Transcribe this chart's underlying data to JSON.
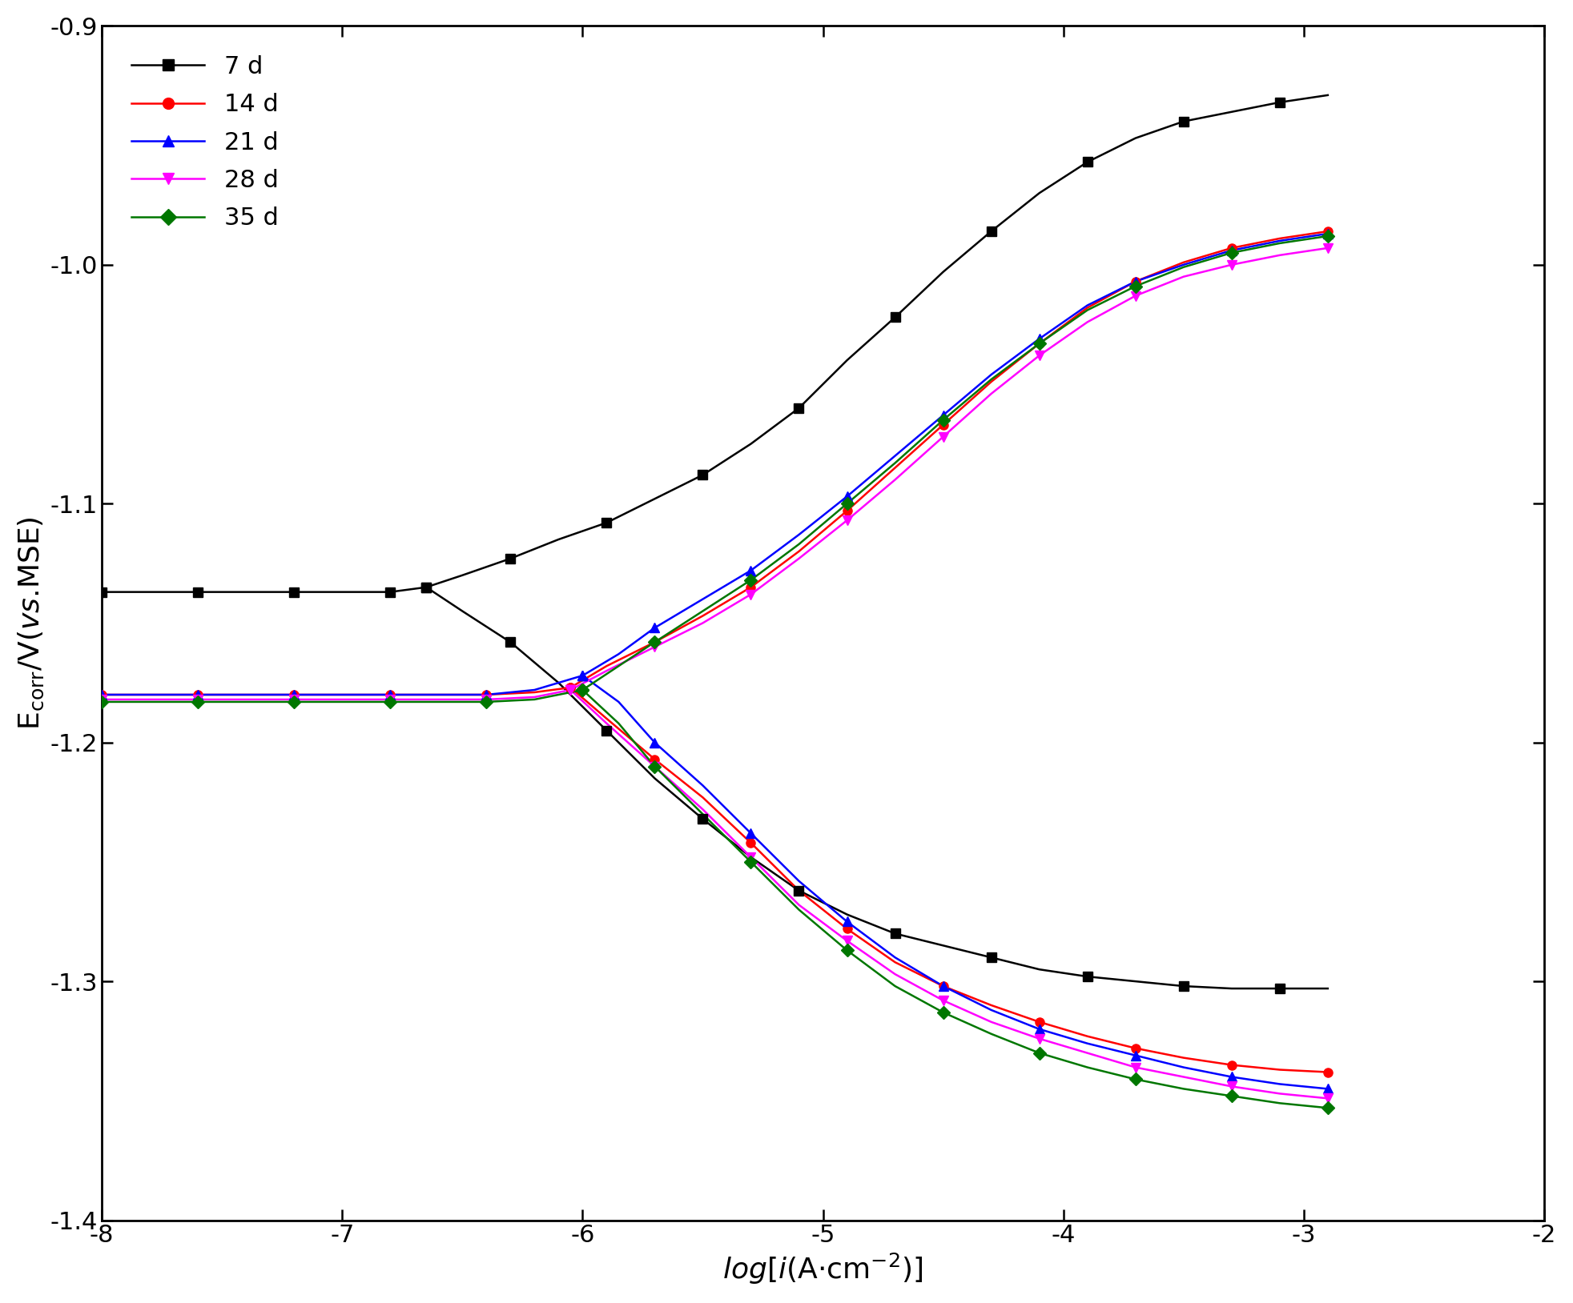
{
  "xlim": [
    -8,
    -2
  ],
  "ylim": [
    -1.4,
    -0.9
  ],
  "xticks": [
    -8,
    -7,
    -6,
    -5,
    -4,
    -3,
    -2
  ],
  "yticks": [
    -1.4,
    -1.3,
    -1.2,
    -1.1,
    -1.0,
    -0.9
  ],
  "series": [
    {
      "label": "7 d",
      "color": "#000000",
      "marker": "s",
      "markersize": 8,
      "linewidth": 1.8,
      "marker_every": 2,
      "left_x": [
        -8.0,
        -7.8,
        -7.6,
        -7.4,
        -7.2,
        -7.0,
        -6.8,
        -6.65
      ],
      "left_y": [
        -1.137,
        -1.137,
        -1.137,
        -1.137,
        -1.137,
        -1.137,
        -1.137,
        -1.135
      ],
      "right_anodic_x": [
        -6.65,
        -6.5,
        -6.3,
        -6.1,
        -5.9,
        -5.7,
        -5.5,
        -5.3,
        -5.1,
        -4.9,
        -4.7,
        -4.5,
        -4.3,
        -4.1,
        -3.9,
        -3.7,
        -3.5,
        -3.3,
        -3.1,
        -2.9
      ],
      "right_anodic_y": [
        -1.135,
        -1.13,
        -1.123,
        -1.115,
        -1.108,
        -1.098,
        -1.088,
        -1.075,
        -1.06,
        -1.04,
        -1.022,
        -1.003,
        -0.986,
        -0.97,
        -0.957,
        -0.947,
        -0.94,
        -0.936,
        -0.932,
        -0.929
      ],
      "right_cathodic_x": [
        -6.65,
        -6.5,
        -6.3,
        -6.1,
        -5.9,
        -5.7,
        -5.5,
        -5.3,
        -5.1,
        -4.9,
        -4.7,
        -4.5,
        -4.3,
        -4.1,
        -3.9,
        -3.7,
        -3.5,
        -3.3,
        -3.1,
        -2.9
      ],
      "right_cathodic_y": [
        -1.135,
        -1.145,
        -1.158,
        -1.175,
        -1.195,
        -1.215,
        -1.232,
        -1.248,
        -1.262,
        -1.272,
        -1.28,
        -1.285,
        -1.29,
        -1.295,
        -1.298,
        -1.3,
        -1.302,
        -1.303,
        -1.303,
        -1.303
      ]
    },
    {
      "label": "14 d",
      "color": "#ff0000",
      "marker": "o",
      "markersize": 8,
      "linewidth": 1.8,
      "marker_every": 2,
      "left_x": [
        -8.0,
        -7.8,
        -7.6,
        -7.4,
        -7.2,
        -7.0,
        -6.8,
        -6.6,
        -6.4,
        -6.2,
        -6.05
      ],
      "left_y": [
        -1.18,
        -1.18,
        -1.18,
        -1.18,
        -1.18,
        -1.18,
        -1.18,
        -1.18,
        -1.18,
        -1.179,
        -1.177
      ],
      "right_anodic_x": [
        -6.05,
        -5.9,
        -5.7,
        -5.5,
        -5.3,
        -5.1,
        -4.9,
        -4.7,
        -4.5,
        -4.3,
        -4.1,
        -3.9,
        -3.7,
        -3.5,
        -3.3,
        -3.1,
        -2.9
      ],
      "right_anodic_y": [
        -1.177,
        -1.168,
        -1.158,
        -1.147,
        -1.135,
        -1.12,
        -1.103,
        -1.085,
        -1.067,
        -1.049,
        -1.033,
        -1.018,
        -1.007,
        -0.999,
        -0.993,
        -0.989,
        -0.986
      ],
      "right_cathodic_x": [
        -6.05,
        -5.9,
        -5.7,
        -5.5,
        -5.3,
        -5.1,
        -4.9,
        -4.7,
        -4.5,
        -4.3,
        -4.1,
        -3.9,
        -3.7,
        -3.5,
        -3.3,
        -3.1,
        -2.9
      ],
      "right_cathodic_y": [
        -1.177,
        -1.19,
        -1.207,
        -1.223,
        -1.242,
        -1.262,
        -1.278,
        -1.292,
        -1.302,
        -1.31,
        -1.317,
        -1.323,
        -1.328,
        -1.332,
        -1.335,
        -1.337,
        -1.338
      ]
    },
    {
      "label": "21 d",
      "color": "#0000ff",
      "marker": "^",
      "markersize": 8,
      "linewidth": 1.8,
      "marker_every": 2,
      "left_x": [
        -8.0,
        -7.8,
        -7.6,
        -7.4,
        -7.2,
        -7.0,
        -6.8,
        -6.6,
        -6.4,
        -6.2,
        -6.0
      ],
      "left_y": [
        -1.18,
        -1.18,
        -1.18,
        -1.18,
        -1.18,
        -1.18,
        -1.18,
        -1.18,
        -1.18,
        -1.178,
        -1.172
      ],
      "right_anodic_x": [
        -6.0,
        -5.85,
        -5.7,
        -5.5,
        -5.3,
        -5.1,
        -4.9,
        -4.7,
        -4.5,
        -4.3,
        -4.1,
        -3.9,
        -3.7,
        -3.5,
        -3.3,
        -3.1,
        -2.9
      ],
      "right_anodic_y": [
        -1.172,
        -1.163,
        -1.152,
        -1.14,
        -1.128,
        -1.113,
        -1.097,
        -1.08,
        -1.063,
        -1.046,
        -1.031,
        -1.017,
        -1.007,
        -1.0,
        -0.994,
        -0.99,
        -0.987
      ],
      "right_cathodic_x": [
        -6.0,
        -5.85,
        -5.7,
        -5.5,
        -5.3,
        -5.1,
        -4.9,
        -4.7,
        -4.5,
        -4.3,
        -4.1,
        -3.9,
        -3.7,
        -3.5,
        -3.3,
        -3.1,
        -2.9
      ],
      "right_cathodic_y": [
        -1.172,
        -1.183,
        -1.2,
        -1.218,
        -1.238,
        -1.258,
        -1.275,
        -1.29,
        -1.302,
        -1.312,
        -1.32,
        -1.326,
        -1.331,
        -1.336,
        -1.34,
        -1.343,
        -1.345
      ]
    },
    {
      "label": "28 d",
      "color": "#ff00ff",
      "marker": "v",
      "markersize": 8,
      "linewidth": 1.8,
      "marker_every": 2,
      "left_x": [
        -8.0,
        -7.8,
        -7.6,
        -7.4,
        -7.2,
        -7.0,
        -6.8,
        -6.6,
        -6.4,
        -6.2,
        -6.05
      ],
      "left_y": [
        -1.182,
        -1.182,
        -1.182,
        -1.182,
        -1.182,
        -1.182,
        -1.182,
        -1.182,
        -1.182,
        -1.181,
        -1.178
      ],
      "right_anodic_x": [
        -6.05,
        -5.9,
        -5.7,
        -5.5,
        -5.3,
        -5.1,
        -4.9,
        -4.7,
        -4.5,
        -4.3,
        -4.1,
        -3.9,
        -3.7,
        -3.5,
        -3.3,
        -3.1,
        -2.9
      ],
      "right_anodic_y": [
        -1.178,
        -1.17,
        -1.16,
        -1.15,
        -1.138,
        -1.123,
        -1.107,
        -1.09,
        -1.072,
        -1.054,
        -1.038,
        -1.024,
        -1.013,
        -1.005,
        -1.0,
        -0.996,
        -0.993
      ],
      "right_cathodic_x": [
        -6.05,
        -5.9,
        -5.7,
        -5.5,
        -5.3,
        -5.1,
        -4.9,
        -4.7,
        -4.5,
        -4.3,
        -4.1,
        -3.9,
        -3.7,
        -3.5,
        -3.3,
        -3.1,
        -2.9
      ],
      "right_cathodic_y": [
        -1.178,
        -1.192,
        -1.21,
        -1.228,
        -1.248,
        -1.268,
        -1.283,
        -1.297,
        -1.308,
        -1.317,
        -1.324,
        -1.33,
        -1.336,
        -1.34,
        -1.344,
        -1.347,
        -1.349
      ]
    },
    {
      "label": "35 d",
      "color": "#007700",
      "marker": "D",
      "markersize": 8,
      "linewidth": 1.8,
      "marker_every": 2,
      "left_x": [
        -8.0,
        -7.8,
        -7.6,
        -7.4,
        -7.2,
        -7.0,
        -6.8,
        -6.6,
        -6.4,
        -6.2,
        -6.0
      ],
      "left_y": [
        -1.183,
        -1.183,
        -1.183,
        -1.183,
        -1.183,
        -1.183,
        -1.183,
        -1.183,
        -1.183,
        -1.182,
        -1.178
      ],
      "right_anodic_x": [
        -6.0,
        -5.85,
        -5.7,
        -5.5,
        -5.3,
        -5.1,
        -4.9,
        -4.7,
        -4.5,
        -4.3,
        -4.1,
        -3.9,
        -3.7,
        -3.5,
        -3.3,
        -3.1,
        -2.9
      ],
      "right_anodic_y": [
        -1.178,
        -1.168,
        -1.158,
        -1.145,
        -1.132,
        -1.117,
        -1.1,
        -1.083,
        -1.065,
        -1.048,
        -1.033,
        -1.019,
        -1.009,
        -1.001,
        -0.995,
        -0.991,
        -0.988
      ],
      "right_cathodic_x": [
        -6.0,
        -5.85,
        -5.7,
        -5.5,
        -5.3,
        -5.1,
        -4.9,
        -4.7,
        -4.5,
        -4.3,
        -4.1,
        -3.9,
        -3.7,
        -3.5,
        -3.3,
        -3.1,
        -2.9
      ],
      "right_cathodic_y": [
        -1.178,
        -1.192,
        -1.21,
        -1.23,
        -1.25,
        -1.27,
        -1.287,
        -1.302,
        -1.313,
        -1.322,
        -1.33,
        -1.336,
        -1.341,
        -1.345,
        -1.348,
        -1.351,
        -1.353
      ]
    }
  ],
  "legend_loc": "upper left",
  "tick_fontsize": 22,
  "label_fontsize": 26,
  "legend_fontsize": 22
}
